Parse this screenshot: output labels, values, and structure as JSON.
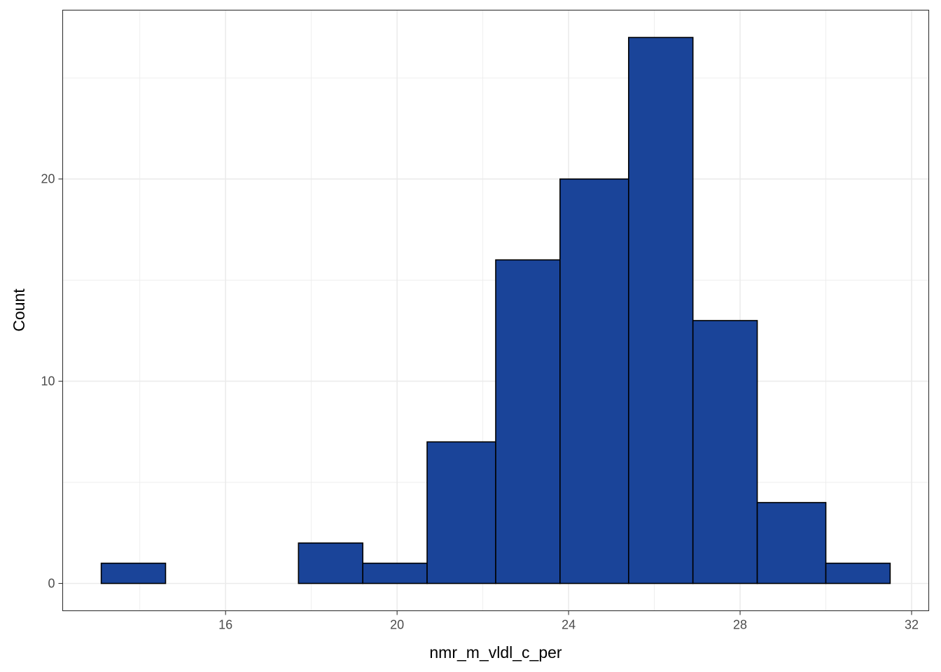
{
  "chart_data": {
    "type": "bar",
    "subtype": "histogram",
    "xlabel": "nmr_m_vldl_c_per",
    "ylabel": "Count",
    "bins": [
      {
        "x0": 13.1,
        "x1": 14.6,
        "count": 1
      },
      {
        "x0": 14.6,
        "x1": 16.1,
        "count": 0
      },
      {
        "x0": 16.1,
        "x1": 17.7,
        "count": 0
      },
      {
        "x0": 17.7,
        "x1": 19.2,
        "count": 2
      },
      {
        "x0": 19.2,
        "x1": 20.7,
        "count": 1
      },
      {
        "x0": 20.7,
        "x1": 22.3,
        "count": 7
      },
      {
        "x0": 22.3,
        "x1": 23.8,
        "count": 16
      },
      {
        "x0": 23.8,
        "x1": 25.4,
        "count": 20
      },
      {
        "x0": 25.4,
        "x1": 26.9,
        "count": 27
      },
      {
        "x0": 26.9,
        "x1": 28.4,
        "count": 13
      },
      {
        "x0": 28.4,
        "x1": 30.0,
        "count": 4
      },
      {
        "x0": 30.0,
        "x1": 31.5,
        "count": 1
      }
    ],
    "xlim": [
      12.2,
      32.4
    ],
    "ylim": [
      -1.35,
      28.35
    ],
    "x_ticks": [
      16,
      20,
      24,
      28,
      32
    ],
    "y_ticks": [
      0,
      10,
      20
    ],
    "grid": true,
    "colors": {
      "bar_fill": "#1A4499",
      "bar_outline": "#000000",
      "grid": "#EBEBEB",
      "panel_border": "#333333"
    }
  }
}
